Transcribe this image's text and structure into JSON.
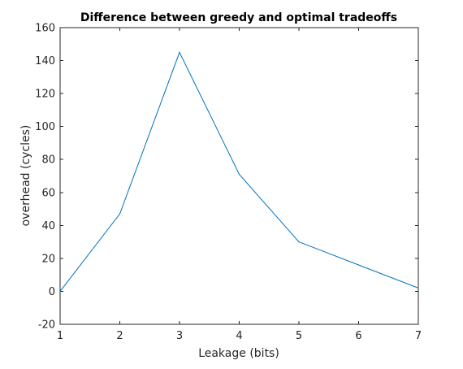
{
  "chart_data": {
    "type": "line",
    "title": "Difference between greedy and optimal tradeoffs",
    "xlabel": "Leakage (bits)",
    "ylabel": "overhead (cycles)",
    "xlim": [
      1,
      7
    ],
    "ylim": [
      -20,
      160
    ],
    "xticks": [
      1,
      2,
      3,
      4,
      5,
      6,
      7
    ],
    "yticks": [
      -20,
      0,
      20,
      40,
      60,
      80,
      100,
      120,
      140,
      160
    ],
    "grid": false,
    "legend": "none",
    "series": [
      {
        "x": [
          1,
          2,
          3,
          4,
          5,
          6,
          7
        ],
        "values": [
          0,
          47,
          145,
          71,
          30,
          16,
          2
        ]
      }
    ],
    "colors": {
      "line": "#0072bd",
      "axes": "#262626"
    }
  }
}
